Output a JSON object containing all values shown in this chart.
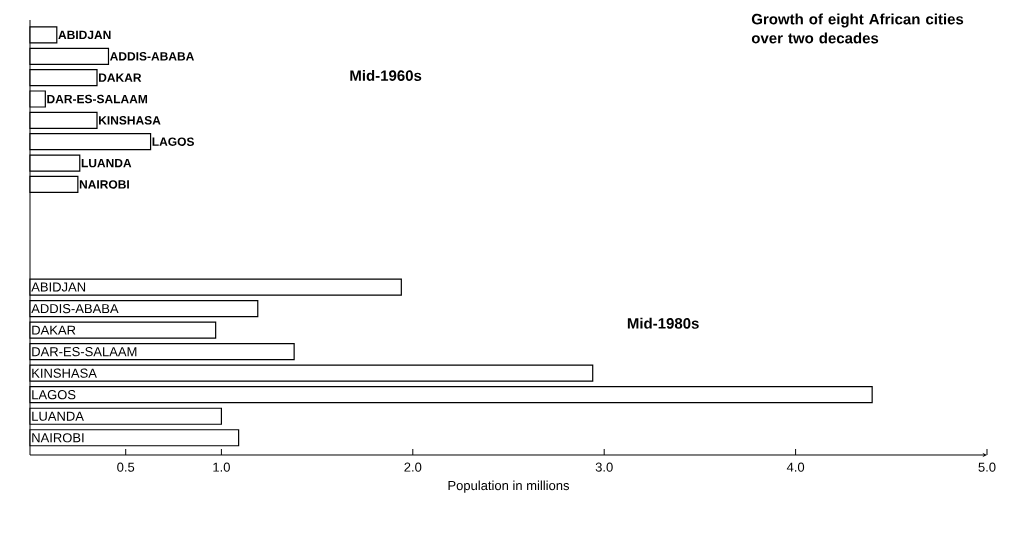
{
  "chart_data": [
    {
      "type": "bar",
      "orientation": "horizontal",
      "title": "Growth of eight African cities over two decades",
      "annotations": [
        "Mid-1960s"
      ],
      "categories": [
        "ABIDJAN",
        "ADDIS-ABABA",
        "DAKAR",
        "DAR-ES-SALAAM",
        "KINSHASA",
        "LAGOS",
        "LUANDA",
        "NAIROBI"
      ],
      "values": [
        0.14,
        0.41,
        0.35,
        0.08,
        0.35,
        0.63,
        0.26,
        0.25
      ],
      "color": "#ffffff",
      "xlim": [
        0,
        5
      ],
      "tick_labels": "y"
    },
    {
      "type": "bar",
      "orientation": "horizontal",
      "xlabel": "Population in millions",
      "annotations": [
        "Mid-1980s"
      ],
      "categories": [
        "ABIDJAN",
        "ADDIS-ABABA",
        "DAKAR",
        "DAR-ES-SALAAM",
        "KINSHASA",
        "LAGOS",
        "LUANDA",
        "NAIROBI"
      ],
      "values": [
        1.94,
        1.19,
        0.97,
        1.38,
        2.94,
        4.4,
        1.0,
        1.09
      ],
      "color": "#ffffff",
      "xlim": [
        0,
        5
      ],
      "xticks": [
        0.5,
        {
          "value": 1,
          "label": "1.0"
        },
        {
          "value": 2,
          "label": "2.0"
        },
        {
          "value": 3,
          "label": "3.0"
        },
        {
          "value": 4,
          "label": "4.0"
        },
        {
          "value": 5,
          "label": "5.0"
        }
      ]
    }
  ]
}
